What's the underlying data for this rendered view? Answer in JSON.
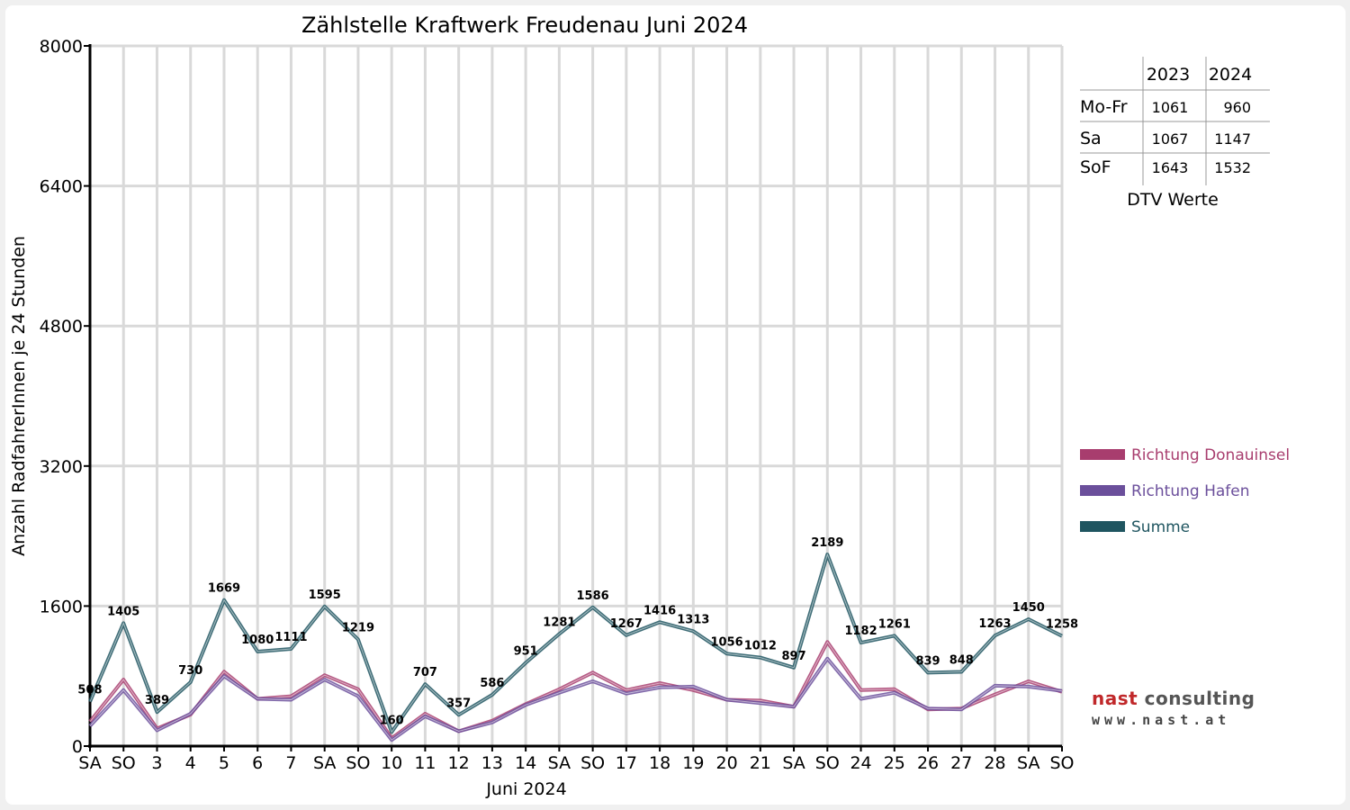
{
  "colors": {
    "donauinsel": "#a83d6e",
    "hafen": "#6b4f9b",
    "summe": "#1f5560",
    "weekend_red": "#ff0000"
  },
  "logo": {
    "brand_part1": "nast",
    "brand_part2": " consulting",
    "url": "www.nast.at"
  },
  "dtv_table": {
    "col_headers": [
      "2023",
      "2024"
    ],
    "rows": [
      {
        "label": "Mo-Fr",
        "v2023": "1061",
        "v2024": "960"
      },
      {
        "label": "Sa",
        "v2023": "1067",
        "v2024": "1147"
      },
      {
        "label": "SoF",
        "v2023": "1643",
        "v2024": "1532"
      }
    ],
    "caption": "DTV Werte"
  },
  "chart_data": {
    "type": "line",
    "title": "Zählstelle Kraftwerk Freudenau Juni 2024",
    "xlabel": "Juni 2024",
    "ylabel": "Anzahl RadfahrerInnen je 24 Stunden",
    "ylim": [
      0,
      8000
    ],
    "yticks": [
      0,
      1600,
      3200,
      4800,
      6400,
      8000
    ],
    "grid": true,
    "legend_position": "right",
    "categories": [
      "SA",
      "SO",
      "3",
      "4",
      "5",
      "6",
      "7",
      "SA",
      "SO",
      "10",
      "11",
      "12",
      "13",
      "14",
      "SA",
      "SO",
      "17",
      "18",
      "19",
      "20",
      "21",
      "SA",
      "SO",
      "24",
      "25",
      "26",
      "27",
      "28",
      "SA",
      "SO"
    ],
    "weekend_red": [
      false,
      true,
      false,
      false,
      false,
      false,
      false,
      false,
      true,
      false,
      false,
      false,
      false,
      false,
      false,
      true,
      false,
      false,
      false,
      false,
      false,
      false,
      true,
      false,
      false,
      false,
      false,
      false,
      false,
      true
    ],
    "series": [
      {
        "name": "Richtung Donauinsel",
        "color": "#a83d6e",
        "values": [
          280,
          760,
          200,
          360,
          850,
          540,
          570,
          810,
          650,
          90,
          370,
          170,
          290,
          480,
          650,
          840,
          640,
          720,
          640,
          530,
          520,
          450,
          1190,
          640,
          650,
          420,
          430,
          590,
          740,
          620
        ]
      },
      {
        "name": "Richtung Hafen",
        "color": "#6b4f9b",
        "values": [
          230,
          640,
          180,
          370,
          800,
          540,
          530,
          760,
          570,
          70,
          340,
          170,
          270,
          470,
          610,
          740,
          600,
          670,
          680,
          530,
          490,
          450,
          1000,
          540,
          610,
          430,
          420,
          690,
          680,
          630
        ]
      },
      {
        "name": "Summe",
        "color": "#1f5560",
        "values": [
          508,
          1405,
          389,
          730,
          1669,
          1080,
          1111,
          1595,
          1219,
          160,
          707,
          357,
          586,
          951,
          1281,
          1586,
          1267,
          1416,
          1313,
          1056,
          1012,
          897,
          2189,
          1182,
          1261,
          839,
          848,
          1263,
          1450,
          1258
        ],
        "labels": [
          "508",
          "1405",
          "389",
          "730",
          "1669",
          "1080",
          "1111",
          "1595",
          "1219",
          "160",
          "707",
          "357",
          "586",
          "951",
          "1281",
          "1586",
          "1267",
          "1416",
          "1313",
          "1056",
          "1012",
          "897",
          "2189",
          "1182",
          "1261",
          "839",
          "848",
          "1263",
          "1450",
          "1258"
        ]
      }
    ]
  }
}
